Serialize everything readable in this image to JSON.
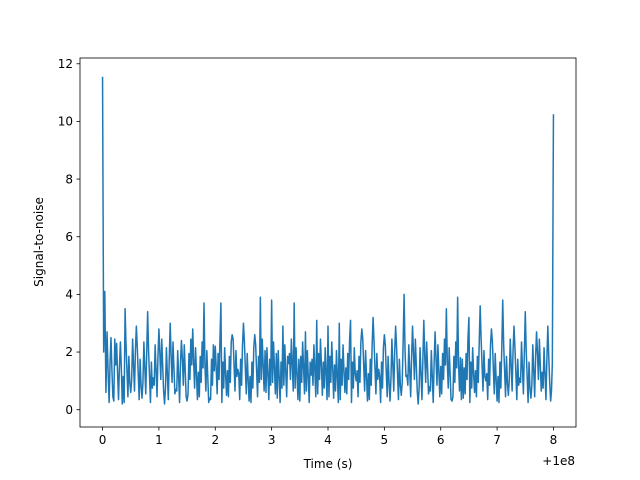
{
  "chart_data": {
    "type": "line",
    "title": "",
    "xlabel": "Time (s)",
    "ylabel": "Signal-to-noise",
    "x_offset_label": "+1e8",
    "xlim": [
      -0.4,
      8.4
    ],
    "ylim": [
      -0.6,
      12.2
    ],
    "xticks": [
      0,
      1,
      2,
      3,
      4,
      5,
      6,
      7,
      8
    ],
    "yticks": [
      0,
      2,
      4,
      6,
      8,
      10,
      12
    ],
    "grid": false,
    "legend": "none",
    "colors": {
      "line": "#1f77b4"
    },
    "series": [
      {
        "x": [
          0.0,
          0.02,
          0.04,
          0.06,
          0.08,
          0.1,
          0.15,
          0.2,
          0.25,
          0.3,
          0.35,
          0.4,
          0.5,
          0.6,
          0.7,
          0.8,
          0.9,
          1.0,
          1.1,
          1.2,
          1.3,
          1.4,
          1.5,
          1.6,
          1.7,
          1.8,
          1.9,
          2.0,
          2.1,
          2.2,
          2.3,
          2.4,
          2.5,
          2.6,
          2.7,
          2.8,
          2.9,
          3.0,
          3.1,
          3.2,
          3.3,
          3.4,
          3.5,
          3.6,
          3.7,
          3.8,
          3.9,
          4.0,
          4.1,
          4.2,
          4.3,
          4.4,
          4.5,
          4.6,
          4.7,
          4.8,
          4.9,
          5.0,
          5.1,
          5.2,
          5.3,
          5.35,
          5.4,
          5.5,
          5.6,
          5.7,
          5.8,
          5.9,
          6.0,
          6.1,
          6.2,
          6.3,
          6.35,
          6.4,
          6.5,
          6.6,
          6.7,
          6.8,
          6.9,
          7.0,
          7.1,
          7.2,
          7.3,
          7.4,
          7.5,
          7.6,
          7.7,
          7.8,
          7.9,
          7.95,
          7.98,
          8.0
        ],
        "y": [
          11.55,
          2.0,
          4.1,
          0.6,
          2.7,
          1.2,
          2.5,
          0.3,
          2.3,
          1.5,
          0.2,
          3.5,
          0.6,
          2.9,
          0.4,
          3.4,
          1.1,
          2.8,
          0.2,
          3.0,
          0.7,
          2.4,
          0.3,
          2.8,
          1.3,
          3.7,
          0.4,
          2.2,
          3.7,
          0.5,
          2.6,
          1.4,
          3.0,
          0.3,
          2.6,
          3.9,
          0.6,
          3.8,
          0.4,
          2.9,
          1.6,
          3.7,
          0.3,
          2.7,
          1.2,
          3.1,
          0.5,
          2.9,
          0.4,
          3.0,
          0.6,
          3.1,
          1.0,
          2.8,
          0.3,
          3.2,
          1.4,
          2.6,
          0.3,
          2.9,
          0.5,
          4.0,
          1.2,
          2.9,
          0.2,
          3.1,
          0.8,
          2.7,
          1.5,
          3.5,
          0.3,
          3.9,
          1.8,
          0.4,
          3.2,
          0.6,
          3.6,
          1.0,
          2.8,
          0.3,
          3.8,
          0.5,
          2.9,
          1.1,
          3.4,
          0.4,
          2.7,
          1.3,
          2.9,
          0.3,
          1.6,
          10.25
        ]
      }
    ]
  }
}
